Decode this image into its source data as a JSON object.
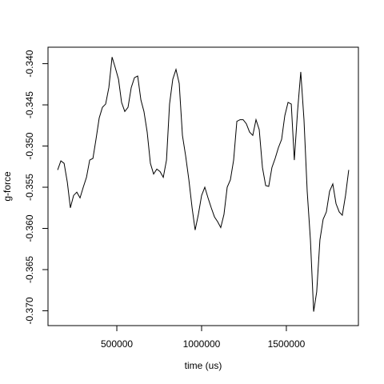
{
  "chart_data": {
    "type": "line",
    "xlabel": "time (us)",
    "ylabel": "g-force",
    "x": [
      151000,
      170000,
      189000,
      208000,
      226000,
      245000,
      264000,
      283000,
      302000,
      321000,
      340000,
      359000,
      377000,
      396000,
      415000,
      434000,
      453000,
      472000,
      491000,
      510000,
      528000,
      547000,
      566000,
      585000,
      604000,
      623000,
      642000,
      660000,
      679000,
      698000,
      717000,
      736000,
      755000,
      774000,
      793000,
      811000,
      830000,
      849000,
      868000,
      887000,
      906000,
      925000,
      944000,
      962000,
      981000,
      1000000,
      1019000,
      1038000,
      1057000,
      1076000,
      1095000,
      1113000,
      1132000,
      1151000,
      1170000,
      1189000,
      1208000,
      1227000,
      1245000,
      1264000,
      1283000,
      1302000,
      1321000,
      1340000,
      1359000,
      1378000,
      1396000,
      1415000,
      1434000,
      1453000,
      1472000,
      1491000,
      1510000,
      1529000,
      1547000,
      1566000,
      1585000,
      1604000,
      1623000,
      1642000,
      1661000,
      1679000,
      1698000,
      1717000,
      1736000,
      1755000,
      1774000,
      1793000,
      1812000,
      1830000,
      1849000,
      1868000
    ],
    "series": [
      {
        "color": "#000000",
        "values": [
          -0.3529,
          -0.3518,
          -0.3521,
          -0.3544,
          -0.3575,
          -0.356,
          -0.3556,
          -0.3563,
          -0.355,
          -0.3538,
          -0.3517,
          -0.3515,
          -0.3492,
          -0.3466,
          -0.3453,
          -0.3449,
          -0.3429,
          -0.3392,
          -0.3405,
          -0.3419,
          -0.3447,
          -0.3458,
          -0.3453,
          -0.3429,
          -0.3417,
          -0.3415,
          -0.3444,
          -0.3458,
          -0.3483,
          -0.3521,
          -0.3534,
          -0.3528,
          -0.3531,
          -0.3538,
          -0.3517,
          -0.3449,
          -0.3419,
          -0.3407,
          -0.3424,
          -0.3487,
          -0.3512,
          -0.3541,
          -0.3575,
          -0.3602,
          -0.3583,
          -0.356,
          -0.355,
          -0.3563,
          -0.3575,
          -0.3586,
          -0.3592,
          -0.3599,
          -0.3583,
          -0.355,
          -0.3541,
          -0.3517,
          -0.347,
          -0.3468,
          -0.3468,
          -0.3473,
          -0.3483,
          -0.3487,
          -0.3468,
          -0.348,
          -0.3526,
          -0.3548,
          -0.3549,
          -0.3526,
          -0.3515,
          -0.3502,
          -0.3492,
          -0.3463,
          -0.3447,
          -0.3449,
          -0.3517,
          -0.3458,
          -0.341,
          -0.3468,
          -0.3555,
          -0.3614,
          -0.3701,
          -0.3677,
          -0.3614,
          -0.3589,
          -0.358,
          -0.3555,
          -0.3546,
          -0.357,
          -0.358,
          -0.3584,
          -0.356,
          -0.3529
        ]
      }
    ],
    "xlim": [
      94000,
      1925000
    ],
    "xticks": [
      500000,
      1000000,
      1500000
    ],
    "ylim": [
      -0.3718,
      -0.338
    ],
    "yticks": [
      {
        "value": -0.34,
        "label": "-0.340"
      },
      {
        "value": -0.345,
        "label": "-0.345"
      },
      {
        "value": -0.35,
        "label": "-0.350"
      },
      {
        "value": -0.355,
        "label": "-0.355"
      },
      {
        "value": -0.36,
        "label": "-0.360"
      },
      {
        "value": -0.365,
        "label": "-0.365"
      },
      {
        "value": -0.37,
        "label": "-0.370"
      }
    ],
    "grid": false
  }
}
